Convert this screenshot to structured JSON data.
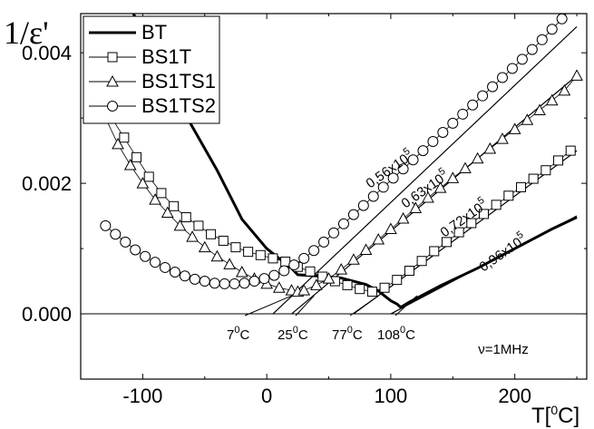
{
  "chart_data": {
    "type": "scatter",
    "xlabel": "T[0C]",
    "ylabel": "1/ε'",
    "xlim": [
      -150,
      258
    ],
    "ylim": [
      -0.001,
      0.0046
    ],
    "xticks": [
      {
        "value": -100,
        "label": "-100"
      },
      {
        "value": 0,
        "label": "0"
      },
      {
        "value": 100,
        "label": "100"
      },
      {
        "value": 200,
        "label": "200"
      }
    ],
    "yticks": [
      {
        "value": 0.0,
        "label": "0.000"
      },
      {
        "value": 0.002,
        "label": "0.002"
      },
      {
        "value": 0.004,
        "label": "0.004"
      }
    ],
    "legend_placement": "top-left",
    "grid": false,
    "frequency_note": "ν=1MHz",
    "series": [
      {
        "name": "BT",
        "marker": "line",
        "x": [
          -130,
          -100,
          -70,
          -40,
          -20,
          0,
          10,
          20,
          25,
          40,
          60,
          80,
          90,
          100,
          105,
          108,
          115,
          140,
          170,
          200,
          230,
          250
        ],
        "y": [
          0.0055,
          0.0043,
          0.0032,
          0.0022,
          0.00145,
          0.001,
          0.00085,
          0.0007,
          0.0006,
          0.00058,
          0.00055,
          0.00045,
          0.00035,
          0.0002,
          0.00015,
          0.0001,
          0.00018,
          0.00043,
          0.0007,
          0.001,
          0.0013,
          0.00148
        ]
      },
      {
        "name": "BS1T",
        "marker": "square",
        "x": [
          -135,
          -125,
          -115,
          -105,
          -95,
          -85,
          -75,
          -65,
          -55,
          -45,
          -35,
          -25,
          -15,
          -5,
          5,
          15,
          25,
          35,
          45,
          55,
          65,
          75,
          85,
          95,
          105,
          115,
          125,
          135,
          145,
          155,
          165,
          175,
          185,
          195,
          205,
          215,
          225,
          235,
          245
        ],
        "y": [
          0.0034,
          0.003,
          0.0027,
          0.0024,
          0.0021,
          0.00185,
          0.00165,
          0.00148,
          0.00135,
          0.00122,
          0.00112,
          0.00102,
          0.00095,
          0.0009,
          0.00085,
          0.0008,
          0.00072,
          0.00065,
          0.00057,
          0.0005,
          0.00044,
          0.00038,
          0.00034,
          0.0004,
          0.00052,
          0.00066,
          0.00081,
          0.00096,
          0.0011,
          0.00125,
          0.00139,
          0.00153,
          0.00167,
          0.00181,
          0.00194,
          0.00207,
          0.0022,
          0.00235,
          0.0025
        ]
      },
      {
        "name": "BS1TS1",
        "marker": "triangle",
        "x": [
          -130,
          -120,
          -110,
          -100,
          -90,
          -80,
          -70,
          -60,
          -50,
          -40,
          -30,
          -20,
          -10,
          0,
          10,
          20,
          25,
          30,
          40,
          50,
          60,
          70,
          80,
          90,
          100,
          110,
          120,
          130,
          140,
          150,
          160,
          170,
          180,
          190,
          200,
          210,
          220,
          230,
          240,
          250
        ],
        "y": [
          0.003,
          0.0026,
          0.00228,
          0.002,
          0.00175,
          0.00155,
          0.00135,
          0.00118,
          0.00102,
          0.00088,
          0.00076,
          0.00064,
          0.00054,
          0.00046,
          0.0004,
          0.00036,
          0.00034,
          0.00036,
          0.00044,
          0.00054,
          0.00068,
          0.00083,
          0.00098,
          0.00114,
          0.0013,
          0.00146,
          0.00162,
          0.00178,
          0.00193,
          0.00208,
          0.00223,
          0.00238,
          0.00253,
          0.00268,
          0.00283,
          0.00297,
          0.00312,
          0.00327,
          0.00342,
          0.00365
        ]
      },
      {
        "name": "BS1TS2",
        "marker": "circle",
        "x": [
          -130,
          -122,
          -114,
          -106,
          -98,
          -90,
          -82,
          -74,
          -66,
          -58,
          -50,
          -42,
          -34,
          -26,
          -18,
          -10,
          -2,
          6,
          14,
          22,
          30,
          38,
          46,
          54,
          62,
          70,
          78,
          86,
          94,
          102,
          110,
          118,
          126,
          134,
          142,
          150,
          158,
          166,
          174,
          182,
          190,
          198,
          206,
          214,
          222,
          230,
          238,
          246,
          250
        ],
        "y": [
          0.00135,
          0.00122,
          0.0011,
          0.00098,
          0.00088,
          0.00079,
          0.00071,
          0.00064,
          0.00058,
          0.00053,
          0.0005,
          0.00047,
          0.00046,
          0.00046,
          0.00047,
          0.0005,
          0.00054,
          0.00059,
          0.00066,
          0.00075,
          0.00085,
          0.00097,
          0.0011,
          0.00124,
          0.00138,
          0.00152,
          0.00166,
          0.0018,
          0.00194,
          0.00208,
          0.00222,
          0.00236,
          0.0025,
          0.00264,
          0.00278,
          0.00292,
          0.00306,
          0.0032,
          0.00334,
          0.00348,
          0.00362,
          0.00376,
          0.0039,
          0.00405,
          0.0042,
          0.00436,
          0.00452,
          0.0047,
          0.0047
        ]
      }
    ],
    "fit_lines": [
      {
        "x": [
          5,
          250
        ],
        "y": [
          -0.0,
          0.0044
        ]
      },
      {
        "x": [
          20,
          250
        ],
        "y": [
          -0.0,
          0.00365
        ]
      },
      {
        "x": [
          70,
          250
        ],
        "y": [
          -0.0,
          0.0025
        ]
      },
      {
        "x": [
          100,
          250
        ],
        "y": [
          -0.0,
          0.0015
        ]
      }
    ],
    "annotations": {
      "slopes": [
        "0,56x10",
        "0,63x10",
        "0,72x10",
        "0,96x10"
      ],
      "slope_exp": "5",
      "temps": [
        "7",
        "25",
        "77",
        "108"
      ],
      "temp_unit_sup": "0",
      "temp_unit": "C"
    }
  }
}
